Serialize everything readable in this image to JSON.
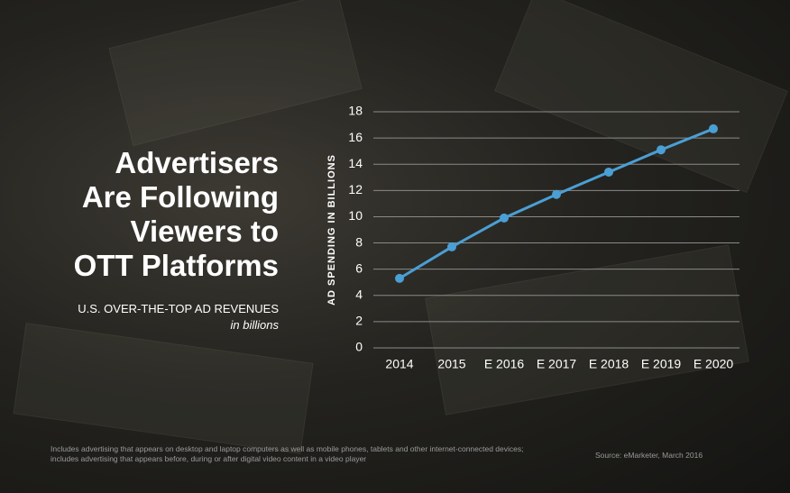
{
  "chart_data": {
    "type": "line",
    "title": [
      "Advertisers",
      "Are Following",
      "Viewers to",
      "OTT Platforms"
    ],
    "subtitle": "U.S. OVER-THE-TOP AD REVENUES",
    "subtitle_note": "in billions",
    "y_label": "AD SPENDING IN BILLIONS",
    "categories": [
      "2014",
      "2015",
      "E 2016",
      "E 2017",
      "E 2018",
      "E 2019",
      "E 2020"
    ],
    "series": [
      {
        "name": "OTT ad revenues",
        "color": "#4a9fd4",
        "values": [
          5.3,
          7.7,
          9.9,
          11.7,
          13.4,
          15.1,
          16.7
        ]
      }
    ],
    "ylim": [
      0,
      18
    ],
    "yticks": [
      0,
      2,
      4,
      6,
      8,
      10,
      12,
      14,
      16,
      18
    ],
    "grid": true,
    "footnote": "Includes advertising that appears on desktop and laptop computers as well as mobile phones, tablets and other internet-connected devices; includes advertising that appears before, during or after digital video content in a video player",
    "source": "Source: eMarketer, March 2016"
  }
}
